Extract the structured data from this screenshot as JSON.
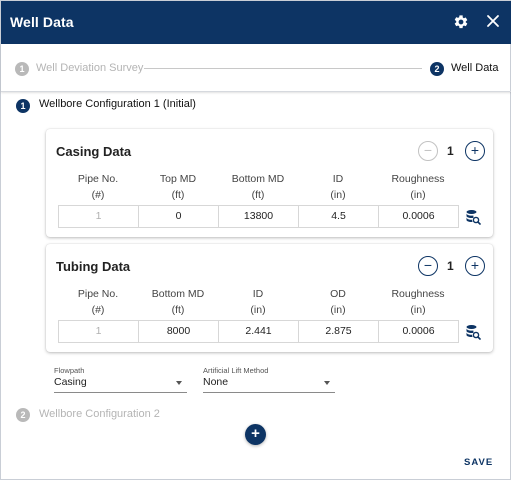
{
  "dialog": {
    "title": "Well Data",
    "settings_icon": "gear-icon",
    "close_icon": "close-icon"
  },
  "stepper": {
    "steps": [
      {
        "number": "1",
        "label": "Well Deviation Survey",
        "state": "inactive"
      },
      {
        "number": "2",
        "label": "Well Data",
        "state": "active"
      }
    ]
  },
  "wellbores": [
    {
      "number": "1",
      "label": "Wellbore Configuration 1 (Initial)",
      "state": "active"
    },
    {
      "number": "2",
      "label": "Wellbore Configuration 2",
      "state": "inactive"
    }
  ],
  "casing": {
    "title": "Casing Data",
    "count": "1",
    "decrement_label": "−",
    "increment_label": "+",
    "columns": [
      {
        "name": "Pipe No.",
        "unit": "(#)"
      },
      {
        "name": "Top MD",
        "unit": "(ft)"
      },
      {
        "name": "Bottom MD",
        "unit": "(ft)"
      },
      {
        "name": "ID",
        "unit": "(in)"
      },
      {
        "name": "Roughness",
        "unit": "(in)"
      }
    ],
    "rows": [
      [
        "1",
        "0",
        "13800",
        "4.5",
        "0.0006"
      ]
    ],
    "lookup_icon": "database-search-icon"
  },
  "tubing": {
    "title": "Tubing Data",
    "count": "1",
    "decrement_label": "−",
    "increment_label": "+",
    "columns": [
      {
        "name": "Pipe No.",
        "unit": "(#)"
      },
      {
        "name": "Bottom MD",
        "unit": "(ft)"
      },
      {
        "name": "ID",
        "unit": "(in)"
      },
      {
        "name": "OD",
        "unit": "(in)"
      },
      {
        "name": "Roughness",
        "unit": "(in)"
      }
    ],
    "rows": [
      [
        "1",
        "8000",
        "2.441",
        "2.875",
        "0.0006"
      ]
    ],
    "lookup_icon": "database-search-icon"
  },
  "flowpath": {
    "label": "Flowpath",
    "value": "Casing"
  },
  "artificial_lift": {
    "label": "Artificial Lift Method",
    "value": "None"
  },
  "add_button_label": "+",
  "save_label": "SAVE",
  "colors": {
    "primary": "#0d3464",
    "inactive": "#b9b9b9"
  }
}
